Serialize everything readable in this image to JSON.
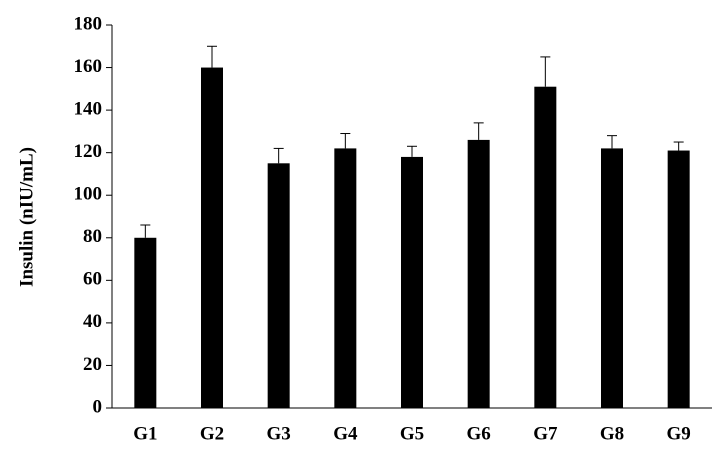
{
  "chart_data": {
    "type": "bar",
    "y_label": "Insulin (nIU/mL)",
    "categories": [
      "G1",
      "G2",
      "G3",
      "G4",
      "G5",
      "G6",
      "G7",
      "G8",
      "G9"
    ],
    "values": [
      80,
      160,
      115,
      122,
      118,
      126,
      151,
      122,
      121
    ],
    "errors": [
      6,
      10,
      7,
      7,
      5,
      8,
      14,
      6,
      4
    ],
    "color": "#000000",
    "ylim": [
      0,
      180
    ],
    "yticks": [
      0,
      20,
      40,
      60,
      80,
      100,
      120,
      140,
      160,
      180
    ],
    "grid": false
  }
}
